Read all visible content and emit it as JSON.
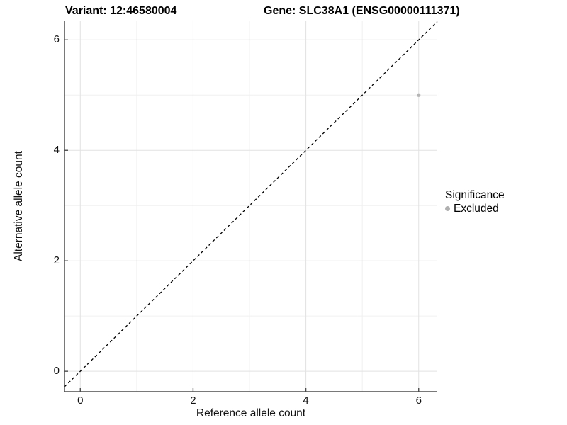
{
  "chart_data": {
    "type": "scatter",
    "title_left": "Variant: 12:46580004",
    "title_right": "Gene: SLC38A1 (ENSG00000111371)",
    "xlabel": "Reference allele count",
    "ylabel": "Alternative allele count",
    "xlim": [
      -0.28,
      6.33
    ],
    "ylim": [
      -0.37,
      6.35
    ],
    "xticks": [
      0,
      2,
      4,
      6
    ],
    "yticks": [
      0,
      2,
      4,
      6
    ],
    "minor_xticks": [
      1,
      3,
      5
    ],
    "minor_yticks": [
      1,
      3,
      5
    ],
    "grid": "major+minor",
    "identity_line": {
      "style": "dashed",
      "from": -0.28,
      "to": 6.33,
      "color": "#000000"
    },
    "series": [
      {
        "name": "Excluded",
        "color": "#b5b5b5",
        "points": [
          {
            "x": 6,
            "y": 5
          }
        ]
      }
    ],
    "legend": {
      "title": "Significance",
      "position": "right",
      "items": [
        {
          "label": "Excluded",
          "color": "#b0b0b0"
        }
      ]
    },
    "colors": {
      "axis_line": "#4d4d4d",
      "tick_mark": "#4d4d4d",
      "major_grid": "#e2e2e2",
      "minor_grid": "#f0f0f0",
      "tick_label": "#111111"
    }
  }
}
